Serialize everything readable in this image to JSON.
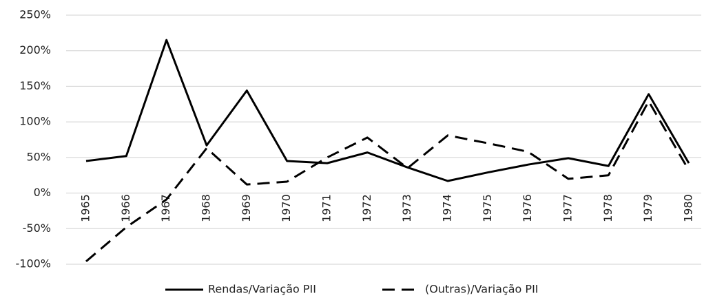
{
  "chart_data": {
    "type": "line",
    "categories": [
      "1965",
      "1966",
      "1967",
      "1968",
      "1969",
      "1970",
      "1971",
      "1972",
      "1973",
      "1974",
      "1975",
      "1976",
      "1977",
      "1978",
      "1979",
      "1980"
    ],
    "series": [
      {
        "name": "Rendas/Variação PII",
        "color": "#000000",
        "dash": "solid",
        "values": [
          45,
          52,
          215,
          67,
          144,
          45,
          42,
          57,
          36,
          17,
          29,
          40,
          49,
          38,
          139,
          42
        ]
      },
      {
        "name": "(Outras)/Variação PII",
        "color": "#000000",
        "dash": "dashed",
        "values": [
          -96,
          -48,
          -9,
          63,
          12,
          16,
          50,
          78,
          35,
          81,
          70,
          58,
          20,
          25,
          129,
          32
        ]
      }
    ],
    "ylim": [
      -100,
      250
    ],
    "yticks": [
      {
        "value": -100,
        "label": "-100%"
      },
      {
        "value": -50,
        "label": "-50%"
      },
      {
        "value": 0,
        "label": "0%"
      },
      {
        "value": 50,
        "label": "50%"
      },
      {
        "value": 100,
        "label": "100%"
      },
      {
        "value": 150,
        "label": "150%"
      },
      {
        "value": 200,
        "label": "200%"
      },
      {
        "value": 250,
        "label": "250%"
      }
    ],
    "grid": true,
    "legend": "bottom"
  }
}
